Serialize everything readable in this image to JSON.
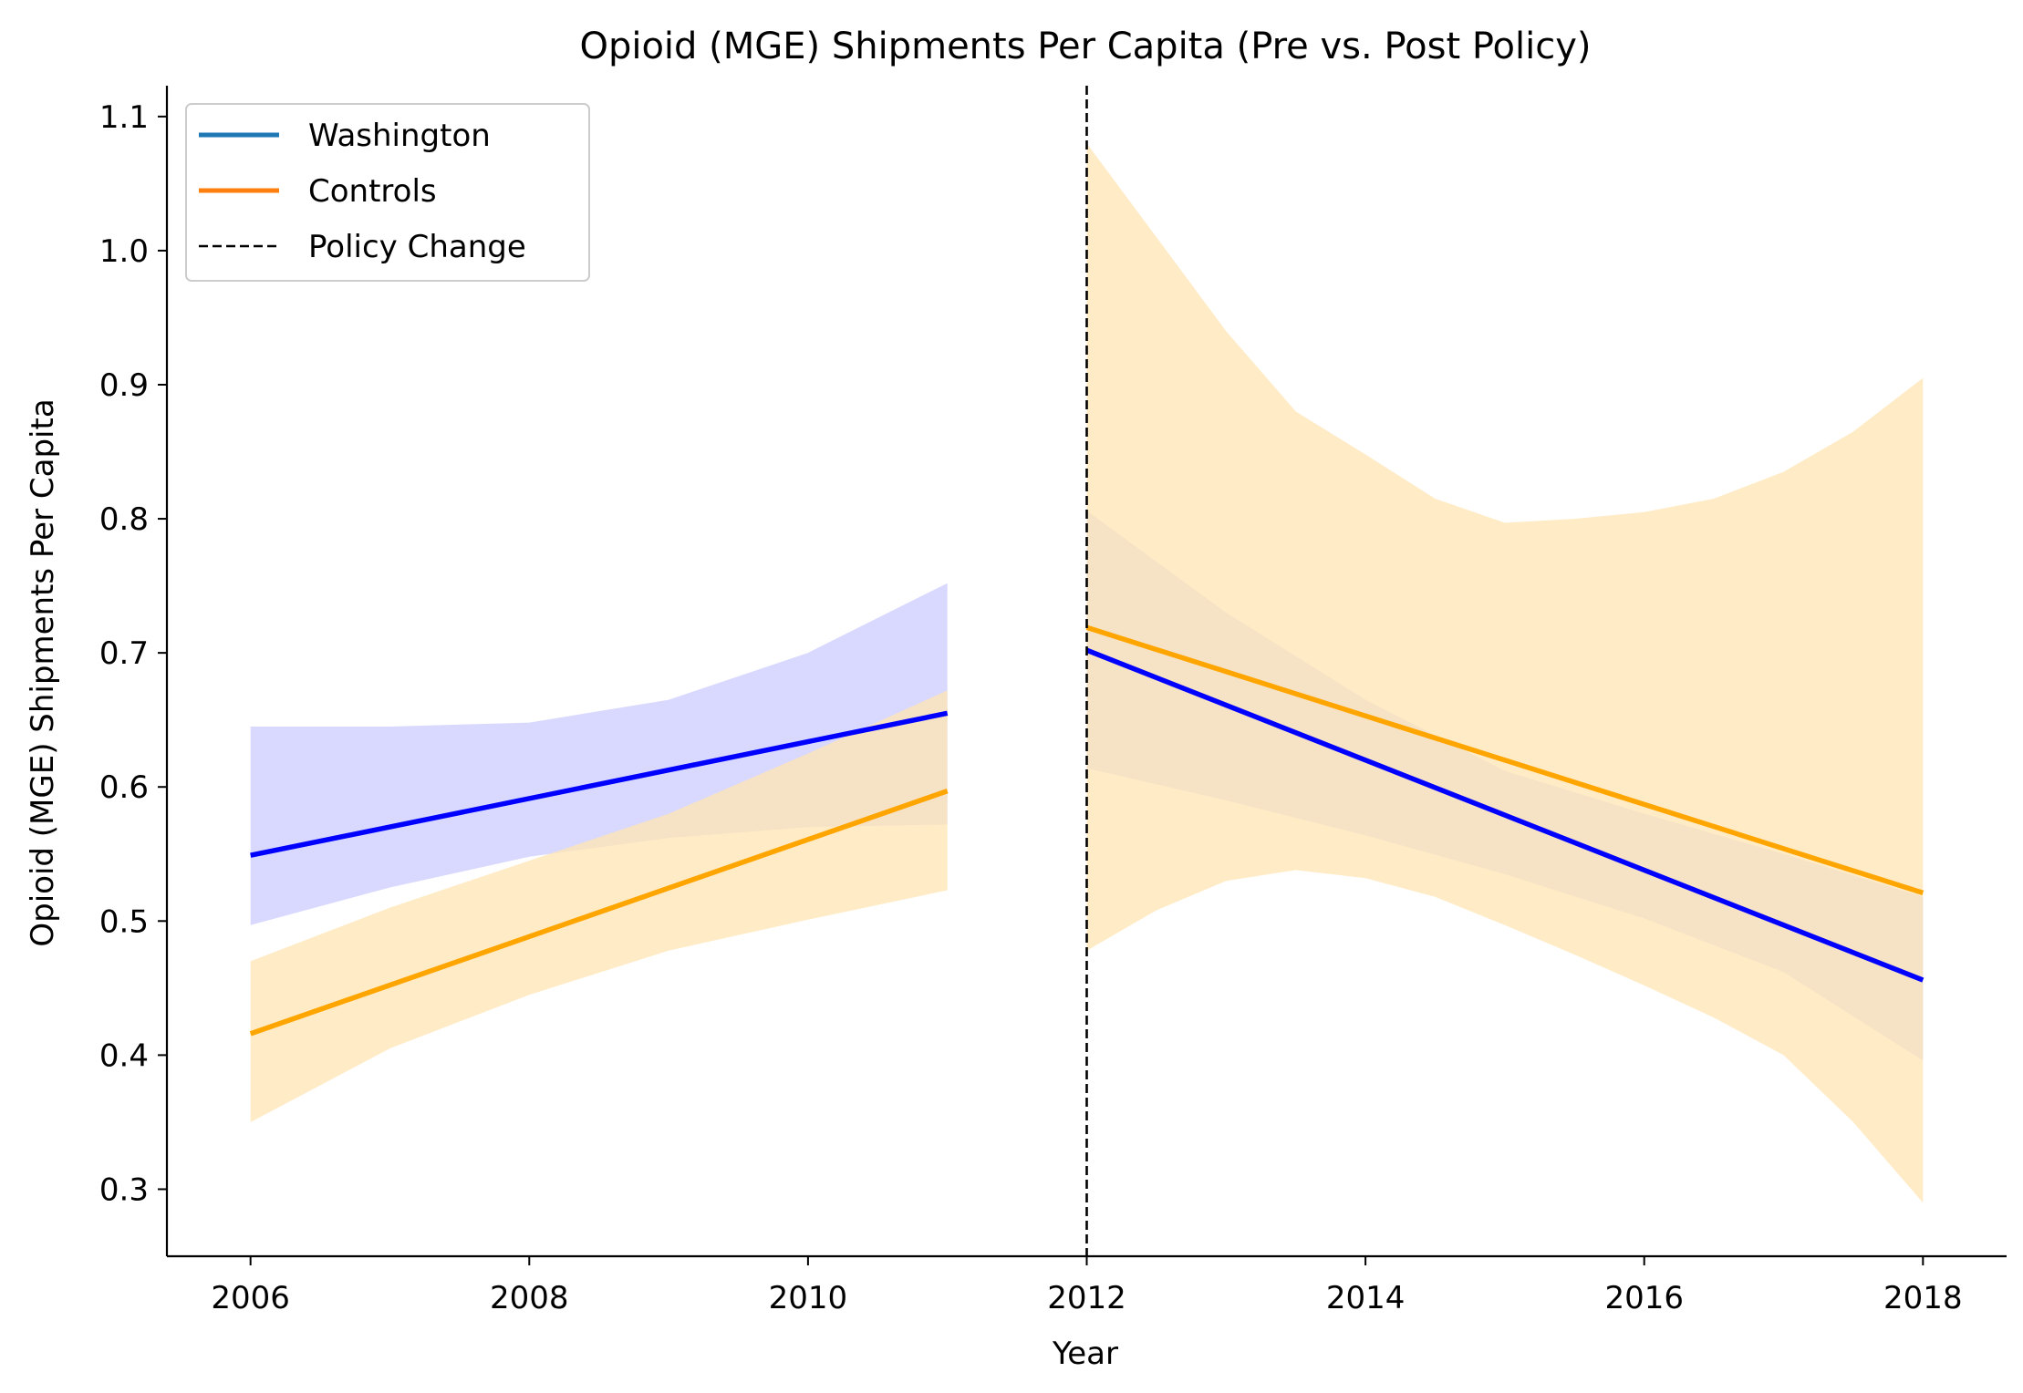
{
  "chart_data": {
    "type": "line",
    "title": "Opioid (MGE) Shipments Per Capita (Pre vs. Post Policy)",
    "xlabel": "Year",
    "ylabel": "Opioid (MGE) Shipments Per Capita",
    "xlim": [
      2005.4,
      2018.6
    ],
    "ylim": [
      0.25,
      1.123
    ],
    "xticks": [
      2006,
      2008,
      2010,
      2012,
      2014,
      2016,
      2018
    ],
    "xtick_labels": [
      "2006",
      "2008",
      "2010",
      "2012",
      "2014",
      "2016",
      "2018"
    ],
    "yticks": [
      0.3,
      0.4,
      0.5,
      0.6,
      0.7,
      0.8,
      0.9,
      1.0,
      1.1
    ],
    "ytick_labels": [
      "0.3",
      "0.4",
      "0.5",
      "0.6",
      "0.7",
      "0.8",
      "0.9",
      "1.0",
      "1.1"
    ],
    "grid": false,
    "legend_position": "top-left",
    "legend": [
      {
        "label": "Washington",
        "style": "solid",
        "color": "#1f77b4"
      },
      {
        "label": "Controls",
        "style": "solid",
        "color": "#ff7f0e"
      },
      {
        "label": "Policy Change",
        "style": "dashed",
        "color": "#000000"
      }
    ],
    "policy_change_x": 2012,
    "series": [
      {
        "name": "Washington",
        "color": "#0000ff",
        "band_color": "#ccccff",
        "segments": [
          {
            "x": [
              2006,
              2011
            ],
            "y": [
              0.549,
              0.655
            ],
            "band_x": [
              2006,
              2007,
              2008,
              2009,
              2010,
              2011
            ],
            "band_lower": [
              0.497,
              0.525,
              0.548,
              0.562,
              0.57,
              0.572
            ],
            "band_upper": [
              0.645,
              0.645,
              0.648,
              0.665,
              0.7,
              0.752
            ]
          },
          {
            "x": [
              2012,
              2018
            ],
            "y": [
              0.702,
              0.456
            ],
            "band_x": [
              2012,
              2013,
              2014,
              2015,
              2016,
              2017,
              2018
            ],
            "band_lower": [
              0.614,
              0.59,
              0.564,
              0.535,
              0.502,
              0.462,
              0.396
            ],
            "band_upper": [
              0.806,
              0.73,
              0.665,
              0.612,
              0.58,
              0.55,
              0.518
            ]
          }
        ]
      },
      {
        "name": "Controls",
        "color": "#ffa500",
        "band_color": "#ffe4b2",
        "segments": [
          {
            "x": [
              2006,
              2011
            ],
            "y": [
              0.416,
              0.597
            ],
            "band_x": [
              2006,
              2007,
              2008,
              2009,
              2010,
              2011
            ],
            "band_lower": [
              0.35,
              0.405,
              0.445,
              0.478,
              0.501,
              0.523
            ],
            "band_upper": [
              0.47,
              0.51,
              0.545,
              0.58,
              0.625,
              0.672
            ]
          },
          {
            "x": [
              2012,
              2018
            ],
            "y": [
              0.719,
              0.521
            ],
            "band_x": [
              2012,
              2012.5,
              2013,
              2013.5,
              2014,
              2014.5,
              2015,
              2015.5,
              2016,
              2016.5,
              2017,
              2017.5,
              2018
            ],
            "band_lower": [
              0.478,
              0.508,
              0.53,
              0.538,
              0.532,
              0.518,
              0.497,
              0.475,
              0.452,
              0.428,
              0.4,
              0.35,
              0.29
            ],
            "band_upper": [
              1.08,
              1.01,
              0.94,
              0.88,
              0.848,
              0.815,
              0.797,
              0.8,
              0.805,
              0.815,
              0.835,
              0.865,
              0.905
            ]
          }
        ]
      }
    ]
  }
}
